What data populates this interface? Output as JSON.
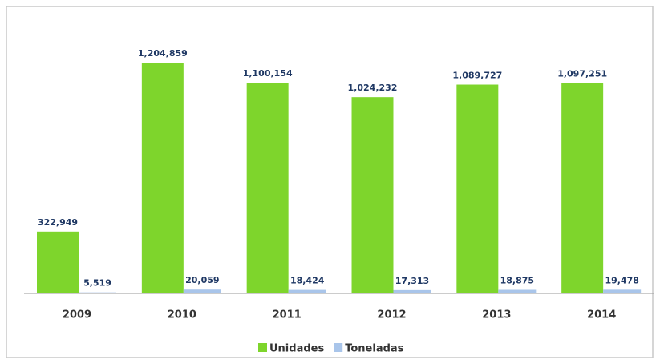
{
  "chart_data": {
    "type": "bar",
    "categories": [
      "2009",
      "2010",
      "2011",
      "2012",
      "2013",
      "2014"
    ],
    "series": [
      {
        "name": "Unidades",
        "color": "#7ed52c",
        "values": [
          322949,
          1204859,
          1100154,
          1024232,
          1089727,
          1097251
        ],
        "value_labels": [
          "322,949",
          "1,204,859",
          "1,100,154",
          "1,024,232",
          "1,089,727",
          "1,097,251"
        ]
      },
      {
        "name": "Toneladas",
        "color": "#a9c5ea",
        "values": [
          5519,
          20059,
          18424,
          17313,
          18875,
          19478
        ],
        "value_labels": [
          "5,519",
          "20,059",
          "18,424",
          "17,313",
          "18,875",
          "19,478"
        ]
      }
    ],
    "legend": "bottom"
  }
}
